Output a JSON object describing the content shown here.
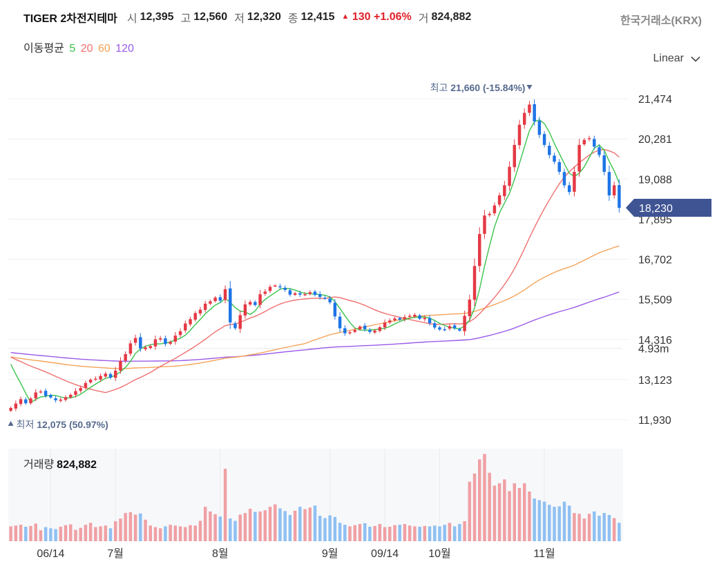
{
  "header": {
    "stock_name": "TIGER 2차전지테마",
    "open_label": "시",
    "open": "12,395",
    "high_label": "고",
    "high": "12,560",
    "low_label": "저",
    "low": "12,320",
    "close_label": "종",
    "close": "12,415",
    "change_arrow": "▲",
    "change": "130",
    "change_pct": "+1.06%",
    "volume_label": "거",
    "volume": "824,882"
  },
  "exchange": "한국거래소(KRX)",
  "ma_legend": {
    "label": "이동평균",
    "p5": "5",
    "p20": "20",
    "p60": "60",
    "p120": "120"
  },
  "scale": {
    "label": "Linear",
    "icon": "chevron-down-icon"
  },
  "colors": {
    "up": "#e53945",
    "down": "#1d74e6",
    "ma5": "#39c24a",
    "ma20": "#ef6f6f",
    "ma60": "#f5a359",
    "ma120": "#9a5ae8",
    "vol_up": "#f0a0a4",
    "vol_down": "#8fc0f2",
    "marker": "#56698f"
  },
  "chart_data": {
    "type": "candlestick",
    "y_ticks": [
      11930,
      13123,
      14316,
      15509,
      16702,
      17895,
      19088,
      20281,
      21474
    ],
    "y_tick_labels": [
      "11,930",
      "13,123",
      "14,316",
      "15,509",
      "16,702",
      "17,895",
      "19,088",
      "20,281",
      "21,474"
    ],
    "ylim": [
      11930,
      21474
    ],
    "x_ticks": [
      {
        "index": 8,
        "label": "06/14"
      },
      {
        "index": 21,
        "label": "7월"
      },
      {
        "index": 42,
        "label": "8월"
      },
      {
        "index": 64,
        "label": "9월"
      },
      {
        "index": 75,
        "label": "09/14"
      },
      {
        "index": 86,
        "label": "10월"
      },
      {
        "index": 107,
        "label": "11월"
      }
    ],
    "last_price": 18230,
    "last_price_label": "18,230",
    "high_marker": {
      "index": 104,
      "value": 21660,
      "label": "최고",
      "value_text": "21,660 (-15.84%)"
    },
    "low_marker": {
      "index": 0,
      "value": 12075,
      "label": "최저",
      "value_text": "12,075 (50.97%)"
    },
    "volume_title": "거래량",
    "volume_value": "824,882",
    "volume_axis_label": "4.93m",
    "volume_axis_value": 4930000,
    "close": [
      12280,
      12410,
      12540,
      12420,
      12560,
      12740,
      12770,
      12640,
      12590,
      12510,
      12530,
      12600,
      12670,
      12780,
      12870,
      13020,
      13120,
      13150,
      13230,
      13300,
      13180,
      13390,
      13680,
      13880,
      14200,
      14360,
      14050,
      14080,
      14120,
      14320,
      14350,
      14180,
      14240,
      14430,
      14560,
      14790,
      14920,
      15100,
      15200,
      15380,
      15450,
      15560,
      15470,
      15810,
      14820,
      14650,
      15040,
      15360,
      15430,
      15340,
      15660,
      15740,
      15880,
      15920,
      15870,
      15790,
      15650,
      15690,
      15650,
      15660,
      15720,
      15640,
      15580,
      15550,
      15420,
      15000,
      14650,
      14500,
      14530,
      14600,
      14700,
      14620,
      14540,
      14580,
      14680,
      14820,
      14880,
      14940,
      14900,
      14980,
      15020,
      15050,
      14930,
      14960,
      14800,
      14670,
      14610,
      14620,
      14710,
      14650,
      14580,
      15020,
      15500,
      16500,
      17450,
      18000,
      18050,
      18300,
      18600,
      18900,
      19450,
      20100,
      20700,
      21050,
      21300,
      20800,
      20400,
      20100,
      19800,
      19600,
      19300,
      18900,
      18700,
      19300,
      20100,
      20250,
      20300,
      20050,
      19800,
      19300,
      18600,
      18900,
      18230
    ],
    "volume": [
      0.38,
      0.4,
      0.42,
      0.37,
      0.39,
      0.45,
      0.28,
      0.36,
      0.33,
      0.31,
      0.37,
      0.41,
      0.43,
      0.29,
      0.34,
      0.42,
      0.47,
      0.36,
      0.38,
      0.4,
      0.33,
      0.51,
      0.58,
      0.72,
      0.74,
      0.68,
      0.71,
      0.55,
      0.4,
      0.36,
      0.33,
      0.38,
      0.42,
      0.4,
      0.38,
      0.36,
      0.41,
      0.4,
      0.52,
      0.88,
      0.76,
      0.69,
      0.63,
      1.85,
      0.58,
      0.52,
      0.68,
      0.72,
      0.83,
      0.75,
      0.76,
      0.79,
      0.88,
      0.94,
      0.84,
      0.77,
      0.67,
      0.78,
      0.88,
      0.82,
      0.86,
      0.91,
      0.65,
      0.59,
      0.66,
      0.62,
      0.47,
      0.42,
      0.38,
      0.41,
      0.44,
      0.46,
      0.37,
      0.39,
      0.44,
      0.36,
      0.37,
      0.41,
      0.42,
      0.44,
      0.4,
      0.38,
      0.37,
      0.39,
      0.38,
      0.4,
      0.38,
      0.42,
      0.47,
      0.38,
      0.44,
      0.51,
      1.52,
      1.73,
      2.09,
      2.23,
      1.75,
      1.42,
      1.48,
      1.58,
      1.28,
      1.48,
      1.36,
      1.48,
      1.27,
      1.09,
      1.05,
      1.01,
      0.93,
      0.88,
      0.89,
      1.01,
      0.91,
      0.72,
      0.7,
      0.58,
      0.7,
      0.76,
      0.65,
      0.72,
      0.67,
      0.59,
      0.47
    ]
  }
}
